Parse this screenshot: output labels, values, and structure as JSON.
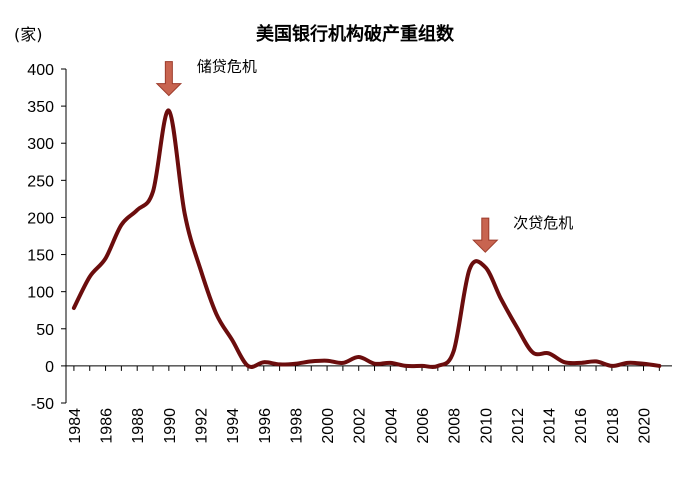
{
  "chart_data": {
    "type": "line",
    "title": "美国银行机构破产重组数",
    "ylabel": "(家)",
    "xlabel": "",
    "ylim": [
      -50,
      400
    ],
    "xlim": [
      1983.5,
      2021.8
    ],
    "yticks": [
      -50,
      0,
      50,
      100,
      150,
      200,
      250,
      300,
      350,
      400
    ],
    "xticks": [
      1984,
      1986,
      1988,
      1990,
      1992,
      1994,
      1996,
      1998,
      2000,
      2002,
      2004,
      2006,
      2008,
      2010,
      2012,
      2014,
      2016,
      2018,
      2020
    ],
    "grid": false,
    "series": [
      {
        "color": "#6b0d0d",
        "x": [
          1984,
          1985,
          1986,
          1987,
          1988,
          1989,
          1990,
          1991,
          1992,
          1993,
          1994,
          1995,
          1996,
          1997,
          1998,
          1999,
          2000,
          2001,
          2002,
          2003,
          2004,
          2005,
          2006,
          2007,
          2008,
          2009,
          2010,
          2011,
          2012,
          2013,
          2014,
          2015,
          2016,
          2017,
          2018,
          2019,
          2020,
          2021
        ],
        "values": [
          78,
          120,
          145,
          190,
          210,
          235,
          344,
          205,
          130,
          70,
          35,
          0,
          5,
          2,
          3,
          6,
          7,
          4,
          12,
          3,
          4,
          0,
          0,
          0,
          20,
          130,
          133,
          90,
          52,
          18,
          17,
          5,
          4,
          6,
          0,
          4,
          3,
          0
        ]
      }
    ],
    "annotations": [
      {
        "text": "储贷危机",
        "color": "#c86450",
        "x": 1990,
        "y": 344
      },
      {
        "text": "次贷危机",
        "color": "#c86450",
        "x": 2010,
        "y": 133
      }
    ]
  }
}
